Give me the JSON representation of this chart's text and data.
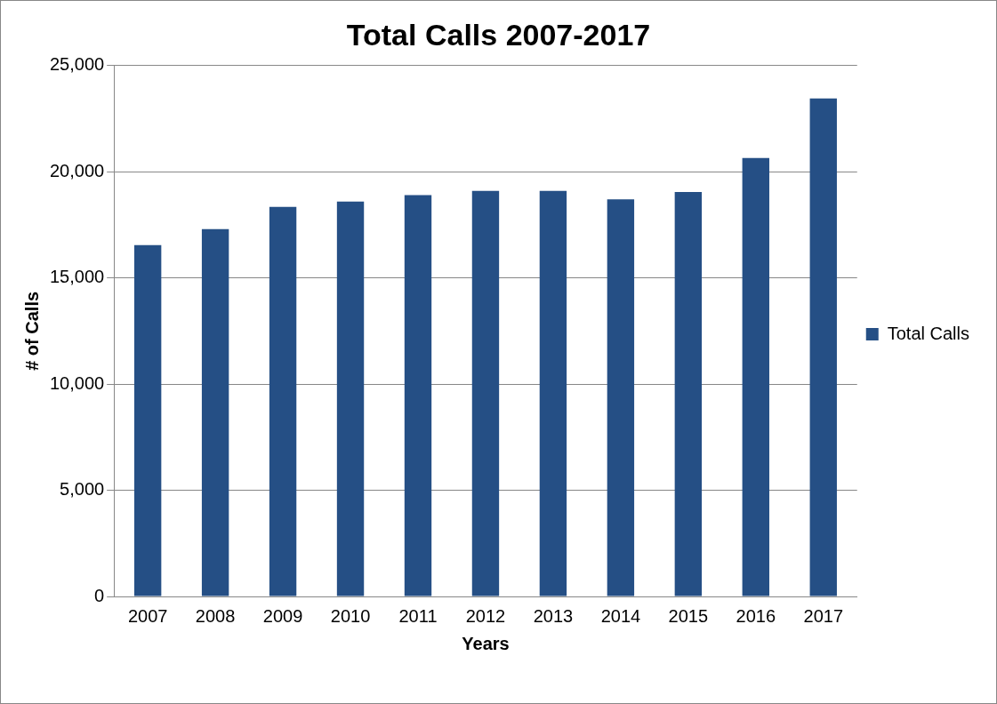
{
  "chart_data": {
    "type": "bar",
    "title": "Total Calls 2007-2017",
    "xlabel": "Years",
    "ylabel": "# of Calls",
    "categories": [
      "2007",
      "2008",
      "2009",
      "2010",
      "2011",
      "2012",
      "2013",
      "2014",
      "2015",
      "2016",
      "2017"
    ],
    "series": [
      {
        "name": "Total Calls",
        "color": "#254f85",
        "values": [
          16550,
          17300,
          18350,
          18600,
          18900,
          19100,
          19100,
          18700,
          19050,
          20650,
          23450
        ]
      }
    ],
    "ylim": [
      0,
      25000
    ],
    "yticks": [
      {
        "value": 0,
        "label": "0"
      },
      {
        "value": 5000,
        "label": "5,000"
      },
      {
        "value": 10000,
        "label": "10,000"
      },
      {
        "value": 15000,
        "label": "15,000"
      },
      {
        "value": 20000,
        "label": "20,000"
      },
      {
        "value": 25000,
        "label": "25,000"
      }
    ],
    "grid": "y",
    "legend": "right"
  }
}
